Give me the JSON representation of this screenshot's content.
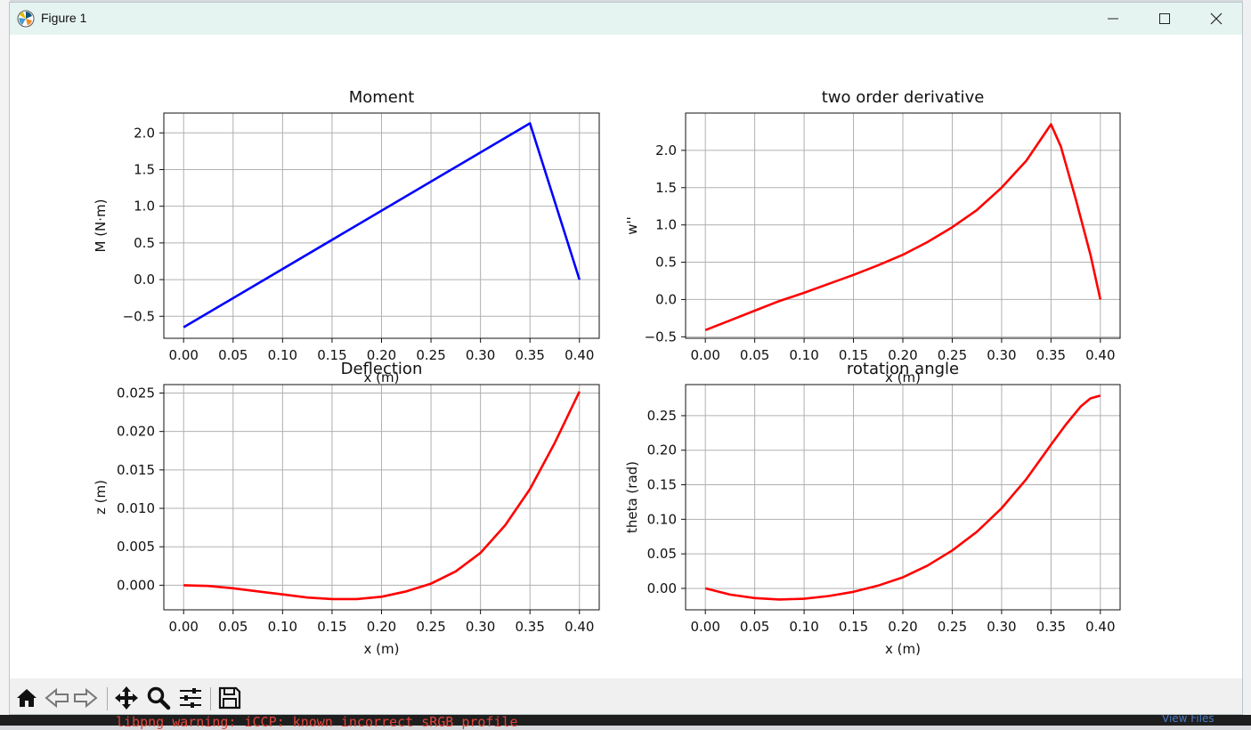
{
  "window": {
    "title": "Figure 1"
  },
  "background": {
    "terminal_text": "libpng warning: iCCP: known incorrect sRGB profile",
    "view_files": "View Files"
  },
  "toolbar": {
    "items": [
      "home-icon",
      "back-icon",
      "forward-icon",
      "pan-icon",
      "zoom-icon",
      "configure-subplots-icon",
      "save-icon"
    ]
  },
  "colors": {
    "blue": "#0000ff",
    "red": "#ff0000",
    "grid": "#b0b0b0",
    "titlebar": "#e6f4f1"
  },
  "chart_data": [
    {
      "type": "line",
      "title": "Moment",
      "xlabel": "x (m)",
      "ylabel": "M (N·m)",
      "xlim": [
        -0.02,
        0.42
      ],
      "ylim": [
        -0.8,
        2.27
      ],
      "xticks": [
        0.0,
        0.05,
        0.1,
        0.15,
        0.2,
        0.25,
        0.3,
        0.35,
        0.4
      ],
      "xtick_labels": [
        "0.00",
        "0.05",
        "0.10",
        "0.15",
        "0.20",
        "0.25",
        "0.30",
        "0.35",
        "0.40"
      ],
      "yticks": [
        -0.5,
        0.0,
        0.5,
        1.0,
        1.5,
        2.0
      ],
      "ytick_labels": [
        "−0.5",
        "0.0",
        "0.5",
        "1.0",
        "1.5",
        "2.0"
      ],
      "grid": true,
      "series": [
        {
          "color": "#0000ff",
          "x": [
            0.0,
            0.35,
            0.4
          ],
          "y": [
            -0.65,
            2.13,
            0.0
          ]
        }
      ]
    },
    {
      "type": "line",
      "title": "two order derivative",
      "xlabel": "x (m)",
      "ylabel": "w''",
      "xlim": [
        -0.02,
        0.42
      ],
      "ylim": [
        -0.52,
        2.5
      ],
      "xticks": [
        0.0,
        0.05,
        0.1,
        0.15,
        0.2,
        0.25,
        0.3,
        0.35,
        0.4
      ],
      "xtick_labels": [
        "0.00",
        "0.05",
        "0.10",
        "0.15",
        "0.20",
        "0.25",
        "0.30",
        "0.35",
        "0.40"
      ],
      "yticks": [
        -0.5,
        0.0,
        0.5,
        1.0,
        1.5,
        2.0
      ],
      "ytick_labels": [
        "−0.5",
        "0.0",
        "0.5",
        "1.0",
        "1.5",
        "2.0"
      ],
      "grid": true,
      "series": [
        {
          "color": "#ff0000",
          "x": [
            0.0,
            0.025,
            0.05,
            0.075,
            0.1,
            0.125,
            0.15,
            0.175,
            0.2,
            0.225,
            0.25,
            0.275,
            0.3,
            0.325,
            0.35,
            0.36,
            0.375,
            0.39,
            0.4
          ],
          "y": [
            -0.41,
            -0.28,
            -0.15,
            -0.02,
            0.09,
            0.21,
            0.33,
            0.46,
            0.6,
            0.77,
            0.97,
            1.2,
            1.5,
            1.86,
            2.35,
            2.05,
            1.35,
            0.6,
            0.0
          ]
        }
      ]
    },
    {
      "type": "line",
      "title": "Deflection",
      "xlabel": "x (m)",
      "ylabel": "z (m)",
      "xlim": [
        -0.02,
        0.42
      ],
      "ylim": [
        -0.0032,
        0.0261
      ],
      "xticks": [
        0.0,
        0.05,
        0.1,
        0.15,
        0.2,
        0.25,
        0.3,
        0.35,
        0.4
      ],
      "xtick_labels": [
        "0.00",
        "0.05",
        "0.10",
        "0.15",
        "0.20",
        "0.25",
        "0.30",
        "0.35",
        "0.40"
      ],
      "yticks": [
        0.0,
        0.005,
        0.01,
        0.015,
        0.02,
        0.025
      ],
      "ytick_labels": [
        "0.000",
        "0.005",
        "0.010",
        "0.015",
        "0.020",
        "0.025"
      ],
      "grid": true,
      "series": [
        {
          "color": "#ff0000",
          "x": [
            0.0,
            0.025,
            0.05,
            0.075,
            0.1,
            0.125,
            0.15,
            0.175,
            0.2,
            0.225,
            0.25,
            0.275,
            0.3,
            0.325,
            0.35,
            0.375,
            0.4
          ],
          "y": [
            0.0,
            -0.0001,
            -0.0004,
            -0.0008,
            -0.0012,
            -0.0016,
            -0.0018,
            -0.0018,
            -0.0015,
            -0.0008,
            0.0002,
            0.0018,
            0.0042,
            0.0078,
            0.0125,
            0.0185,
            0.0252
          ]
        }
      ]
    },
    {
      "type": "line",
      "title": "rotation angle",
      "xlabel": "x (m)",
      "ylabel": "theta (rad)",
      "xlim": [
        -0.02,
        0.42
      ],
      "ylim": [
        -0.031,
        0.295
      ],
      "xticks": [
        0.0,
        0.05,
        0.1,
        0.15,
        0.2,
        0.25,
        0.3,
        0.35,
        0.4
      ],
      "xtick_labels": [
        "0.00",
        "0.05",
        "0.10",
        "0.15",
        "0.20",
        "0.25",
        "0.30",
        "0.35",
        "0.40"
      ],
      "yticks": [
        0.0,
        0.05,
        0.1,
        0.15,
        0.2,
        0.25
      ],
      "ytick_labels": [
        "0.00",
        "0.05",
        "0.10",
        "0.15",
        "0.20",
        "0.25"
      ],
      "grid": true,
      "series": [
        {
          "color": "#ff0000",
          "x": [
            0.0,
            0.025,
            0.05,
            0.075,
            0.1,
            0.125,
            0.15,
            0.175,
            0.2,
            0.225,
            0.25,
            0.275,
            0.3,
            0.325,
            0.35,
            0.365,
            0.38,
            0.39,
            0.4
          ],
          "y": [
            0.0,
            -0.009,
            -0.014,
            -0.016,
            -0.015,
            -0.011,
            -0.005,
            0.004,
            0.016,
            0.033,
            0.055,
            0.082,
            0.116,
            0.158,
            0.208,
            0.237,
            0.263,
            0.275,
            0.279
          ]
        }
      ]
    }
  ]
}
